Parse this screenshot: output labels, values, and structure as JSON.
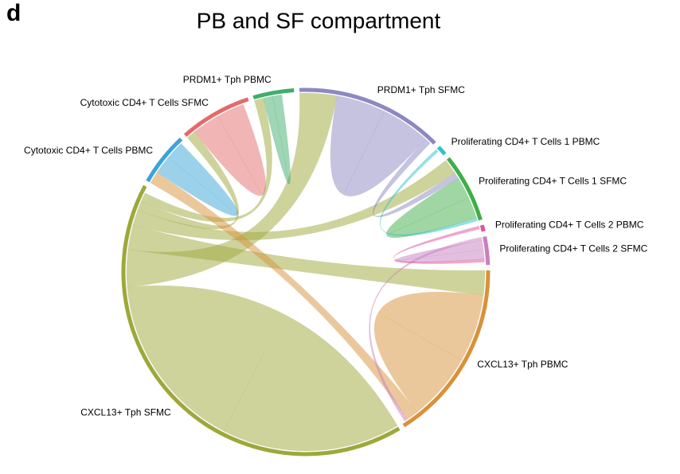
{
  "panel_label": "d",
  "chart_data": {
    "type": "chord",
    "title": "PB and SF compartment",
    "categories": [
      "PRDM1+ Tph PBMC",
      "PRDM1+ Tph SFMC",
      "Proliferating CD4+ T Cells 1 PBMC",
      "Proliferating CD4+ T Cells 1 SFMC",
      "Proliferating CD4+ T Cells 2 PBMC",
      "Proliferating CD4+ T Cells 2 SFMC",
      "CXCL13+ Tph PBMC",
      "CXCL13+ Tph SFMC",
      "Cytotoxic CD4+ T Cells PBMC",
      "Cytotoxic CD4+ T Cells SFMC"
    ],
    "values": [
      13,
      47,
      3,
      22,
      2,
      9,
      58,
      149,
      17,
      23
    ],
    "colors": [
      "#3fae6e",
      "#8c88c0",
      "#2ec4c9",
      "#3fae48",
      "#e04f9b",
      "#c87fc0",
      "#d8923a",
      "#9ea83a",
      "#3aa3d9",
      "#e36b6b"
    ],
    "links": [
      {
        "source": 7,
        "target": 7,
        "value": 58
      },
      {
        "source": 7,
        "target": 1,
        "value": 12
      },
      {
        "source": 7,
        "target": 6,
        "value": 8
      },
      {
        "source": 7,
        "target": 3,
        "value": 5
      },
      {
        "source": 7,
        "target": 9,
        "value": 3
      },
      {
        "source": 7,
        "target": 0,
        "value": 3
      },
      {
        "source": 1,
        "target": 1,
        "value": 16
      },
      {
        "source": 1,
        "target": 3,
        "value": 2
      },
      {
        "source": 6,
        "target": 6,
        "value": 22
      },
      {
        "source": 6,
        "target": 8,
        "value": 4
      },
      {
        "source": 5,
        "target": 6,
        "value": 1
      },
      {
        "source": 8,
        "target": 8,
        "value": 6
      },
      {
        "source": 9,
        "target": 9,
        "value": 9
      },
      {
        "source": 0,
        "target": 0,
        "value": 3
      },
      {
        "source": 3,
        "target": 3,
        "value": 7
      },
      {
        "source": 2,
        "target": 3,
        "value": 1
      },
      {
        "source": 5,
        "target": 5,
        "value": 3
      },
      {
        "source": 4,
        "target": 5,
        "value": 1
      }
    ]
  }
}
